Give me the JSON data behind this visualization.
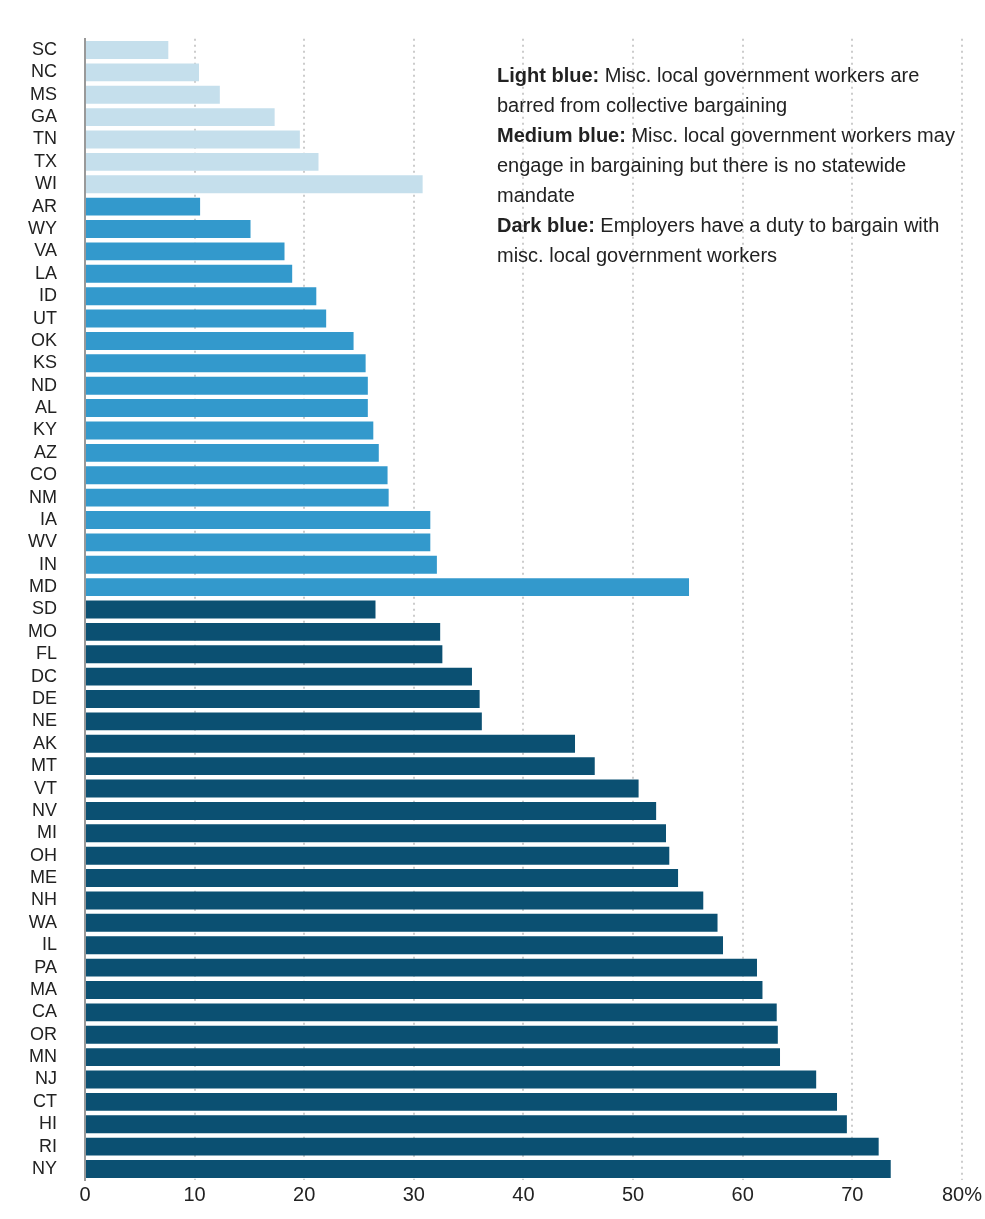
{
  "chart_data": {
    "type": "bar",
    "orientation": "horizontal",
    "categories": [
      "SC",
      "NC",
      "MS",
      "GA",
      "TN",
      "TX",
      "WI",
      "AR",
      "WY",
      "VA",
      "LA",
      "ID",
      "UT",
      "OK",
      "KS",
      "ND",
      "AL",
      "KY",
      "AZ",
      "CO",
      "NM",
      "IA",
      "WV",
      "IN",
      "MD",
      "SD",
      "MO",
      "FL",
      "DC",
      "DE",
      "NE",
      "AK",
      "MT",
      "VT",
      "NV",
      "MI",
      "OH",
      "ME",
      "NH",
      "WA",
      "IL",
      "PA",
      "MA",
      "CA",
      "OR",
      "MN",
      "NJ",
      "CT",
      "HI",
      "RI",
      "NY"
    ],
    "values": [
      7.6,
      10.4,
      12.3,
      17.3,
      19.6,
      21.3,
      30.8,
      10.5,
      15.1,
      18.2,
      18.9,
      21.1,
      22.0,
      24.5,
      25.6,
      25.8,
      25.8,
      26.3,
      26.8,
      27.6,
      27.7,
      31.5,
      31.5,
      32.1,
      55.1,
      26.5,
      32.4,
      32.6,
      35.3,
      36.0,
      36.2,
      44.7,
      46.5,
      50.5,
      52.1,
      53.0,
      53.3,
      54.1,
      56.4,
      57.7,
      58.2,
      61.3,
      61.8,
      63.1,
      63.2,
      63.4,
      66.7,
      68.6,
      69.5,
      72.4,
      73.5
    ],
    "colors": [
      "#c5dfec",
      "#c5dfec",
      "#c5dfec",
      "#c5dfec",
      "#c5dfec",
      "#c5dfec",
      "#c5dfec",
      "#3399cc",
      "#3399cc",
      "#3399cc",
      "#3399cc",
      "#3399cc",
      "#3399cc",
      "#3399cc",
      "#3399cc",
      "#3399cc",
      "#3399cc",
      "#3399cc",
      "#3399cc",
      "#3399cc",
      "#3399cc",
      "#3399cc",
      "#3399cc",
      "#3399cc",
      "#3399cc",
      "#0b5072",
      "#0b5072",
      "#0b5072",
      "#0b5072",
      "#0b5072",
      "#0b5072",
      "#0b5072",
      "#0b5072",
      "#0b5072",
      "#0b5072",
      "#0b5072",
      "#0b5072",
      "#0b5072",
      "#0b5072",
      "#0b5072",
      "#0b5072",
      "#0b5072",
      "#0b5072",
      "#0b5072",
      "#0b5072",
      "#0b5072",
      "#0b5072",
      "#0b5072",
      "#0b5072",
      "#0b5072",
      "#0b5072"
    ],
    "xlim": [
      0,
      80
    ],
    "xticks": [
      0,
      10,
      20,
      30,
      40,
      50,
      60,
      70,
      {
        "value": 80,
        "label": "80%"
      }
    ],
    "grid": "x",
    "annotations": [
      "Light blue: Misc. local government workers are barred from collective bargaining",
      "Medium blue: Misc. local government workers may engage in bargaining but there is no statewide mandate",
      "Dark blue: Employers have a duty to bargain with misc. local government workers"
    ]
  }
}
